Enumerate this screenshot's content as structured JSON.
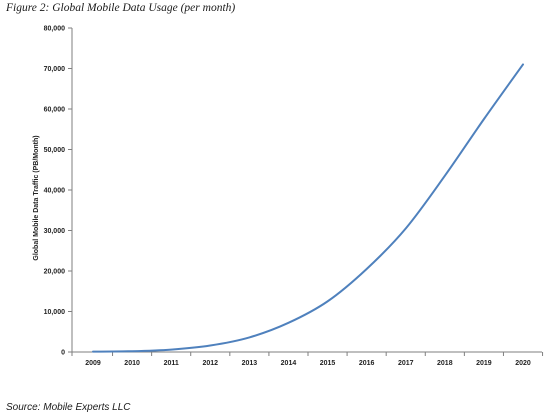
{
  "figure": {
    "caption": "Figure 2: Global Mobile Data Usage (per month)",
    "source": "Source: Mobile Experts LLC"
  },
  "chart_data": {
    "type": "line",
    "title": "",
    "xlabel": "",
    "ylabel": "Global Mobile Data Traffic (PB/Month)",
    "x": [
      "2009",
      "2010",
      "2011",
      "2012",
      "2013",
      "2014",
      "2015",
      "2016",
      "2017",
      "2018",
      "2019",
      "2020"
    ],
    "series": [
      {
        "values": [
          90,
          200,
          600,
          1600,
          3600,
          7200,
          12500,
          20500,
          30500,
          43500,
          57500,
          71000
        ],
        "color": "#4f81bd"
      }
    ],
    "ylim": [
      0,
      80000
    ],
    "yticks": [
      0,
      10000,
      20000,
      30000,
      40000,
      50000,
      60000,
      70000,
      80000
    ],
    "ytick_labels": [
      "0",
      "10,000",
      "20,000",
      "30,000",
      "40,000",
      "50,000",
      "60,000",
      "70,000",
      "80,000"
    ],
    "grid": false,
    "legend": "none"
  }
}
